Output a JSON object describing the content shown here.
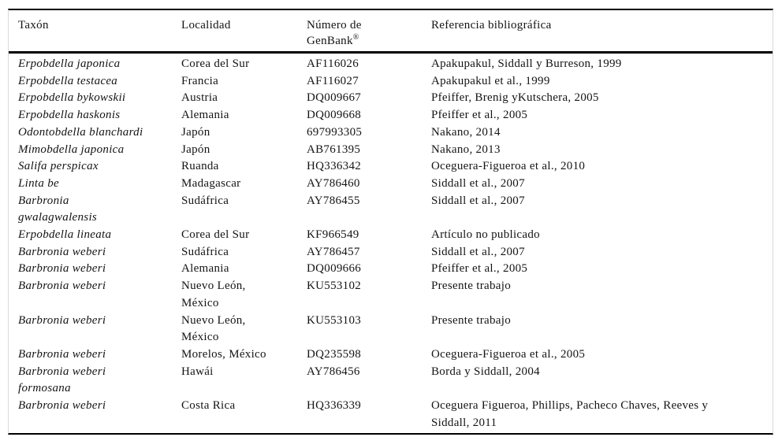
{
  "table": {
    "header": {
      "taxon": "Taxón",
      "localidad": "Localidad",
      "genbank_line1": "Número de",
      "genbank_line2": "GenBank",
      "genbank_sup": "®",
      "referencia": "Referencia bibliográfica"
    },
    "rows": [
      {
        "taxon": "Erpobdella japonica",
        "localidad": "Corea del Sur",
        "genbank": "AF116026",
        "referencia": "Apakupakul, Siddall y Burreson, 1999"
      },
      {
        "taxon": "Erpobdella testacea",
        "localidad": "Francia",
        "genbank": "AF116027",
        "referencia": "Apakupakul et al., 1999"
      },
      {
        "taxon": "Erpobdella bykowskii",
        "localidad": "Austria",
        "genbank": "DQ009667",
        "referencia": "Pfeiffer, Brenig yKutschera, 2005"
      },
      {
        "taxon": "Erpobdella haskonis",
        "localidad": "Alemania",
        "genbank": "DQ009668",
        "referencia": "Pfeiffer et al., 2005"
      },
      {
        "taxon": "Odontobdella blanchardi",
        "localidad": "Japón",
        "genbank": "697993305",
        "referencia": "Nakano, 2014"
      },
      {
        "taxon": "Mimobdella japonica",
        "localidad": "Japón",
        "genbank": "AB761395",
        "referencia": "Nakano, 2013"
      },
      {
        "taxon": "Salifa perspicax",
        "localidad": "Ruanda",
        "genbank": "HQ336342",
        "referencia": "Oceguera-Figueroa et al., 2010"
      },
      {
        "taxon": "Linta be",
        "localidad": "Madagascar",
        "genbank": "AY786460",
        "referencia": "Siddall et al., 2007"
      },
      {
        "taxon": "Barbronia\ngwalagwalensis",
        "localidad": "Sudáfrica",
        "genbank": "AY786455",
        "referencia": "Siddall et al., 2007"
      },
      {
        "taxon": "Erpobdella lineata",
        "localidad": "Corea del Sur",
        "genbank": "KF966549",
        "referencia": "Artículo no publicado"
      },
      {
        "taxon": "Barbronia weberi",
        "localidad": "Sudáfrica",
        "genbank": "AY786457",
        "referencia": "Siddall et al., 2007"
      },
      {
        "taxon": "Barbronia weberi",
        "localidad": "Alemania",
        "genbank": "DQ009666",
        "referencia": "Pfeiffer et al., 2005"
      },
      {
        "taxon": "Barbronia weberi",
        "localidad": "Nuevo León,\nMéxico",
        "genbank": "KU553102",
        "referencia": "Presente trabajo"
      },
      {
        "taxon": "Barbronia weberi",
        "localidad": "Nuevo León,\nMéxico",
        "genbank": "KU553103",
        "referencia": "Presente trabajo"
      },
      {
        "taxon": "Barbronia weberi",
        "localidad": "Morelos, México",
        "genbank": "DQ235598",
        "referencia": "Oceguera-Figueroa et al., 2005"
      },
      {
        "taxon": "Barbronia weberi\nformosana",
        "localidad": "Hawái",
        "genbank": "AY786456",
        "referencia": "Borda y Siddall, 2004"
      },
      {
        "taxon": "Barbronia weberi",
        "localidad": "Costa Rica",
        "genbank": "HQ336339",
        "referencia": "Oceguera Figueroa, Phillips, Pacheco Chaves, Reeves y\nSiddall, 2011"
      }
    ],
    "colors": {
      "rule": "#000000",
      "side_rule": "#d8d8d8",
      "text": "#141414"
    }
  }
}
